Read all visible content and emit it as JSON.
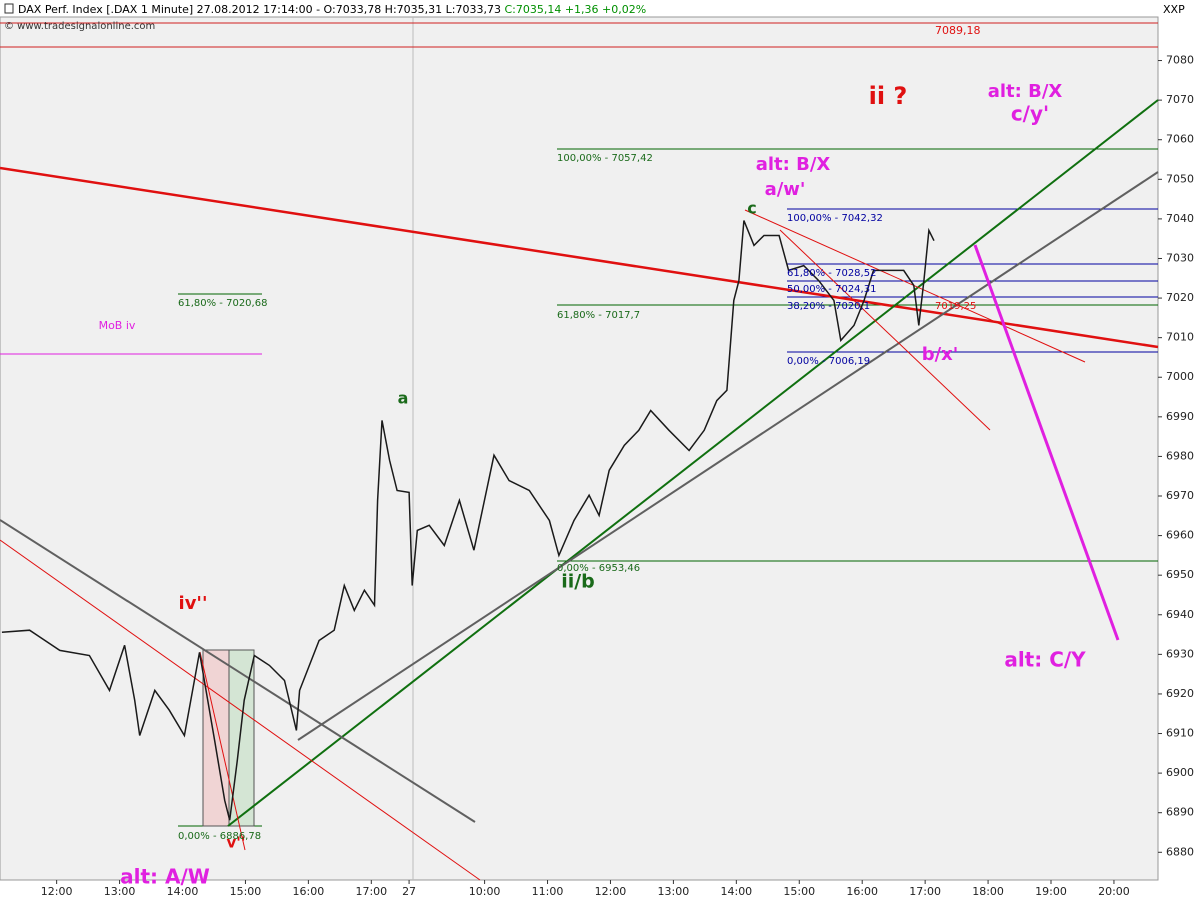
{
  "chart_data": {
    "type": "line",
    "title": "DAX Perf. Index [.DAX  1 Minute] 27.08.2012 17:14:00 - O:7033,78 H:7035,31 L:7033,73",
    "subtitle": "C:7035,14 +1,36 +0,02%",
    "source": "© www.tradesignalonline.com",
    "corner_label": "XXP",
    "color": "#1a1a1a",
    "x": [
      11.13,
      11.57,
      12.05,
      12.52,
      12.84,
      13.08,
      13.24,
      13.32,
      13.56,
      13.79,
      14.03,
      14.27,
      14.51,
      14.67,
      14.75,
      14.87,
      14.98,
      15.14,
      15.38,
      15.62,
      15.81,
      15.86,
      16.17,
      16.41,
      16.57,
      16.73,
      16.89,
      17.05,
      17.1,
      17.17,
      17.29,
      17.41,
      17.6,
      17.65,
      17.73,
      17.92,
      18.16,
      18.4,
      18.63,
      18.95,
      19.19,
      19.51,
      19.83,
      19.98,
      20.22,
      20.46,
      20.62,
      20.78,
      21.02,
      21.25,
      21.44,
      21.73,
      22.05,
      22.29,
      22.49,
      22.65,
      22.76,
      22.84,
      22.92,
      23.08,
      23.24,
      23.48,
      23.63,
      23.87,
      24.11,
      24.35,
      24.46,
      24.67,
      24.83,
      24.98,
      25.22,
      25.46,
      25.62,
      25.7,
      25.78,
      25.86,
      25.94
    ],
    "values": [
      6935.6,
      6936.1,
      6931.0,
      6929.7,
      6920.9,
      6932.3,
      6918.4,
      6909.5,
      6920.9,
      6915.9,
      6909.5,
      6930.5,
      6908.3,
      6893.1,
      6888.1,
      6903.2,
      6918.4,
      6929.7,
      6927.2,
      6923.4,
      6910.8,
      6920.9,
      6933.5,
      6936.1,
      6947.4,
      6941.1,
      6946.2,
      6942.4,
      6968.9,
      6989.1,
      6979.0,
      6971.4,
      6970.9,
      6947.4,
      6961.3,
      6962.6,
      6957.5,
      6968.9,
      6956.3,
      6980.3,
      6973.9,
      6971.4,
      6963.8,
      6955.0,
      6963.8,
      6970.2,
      6965.1,
      6976.5,
      6982.8,
      6986.6,
      6991.6,
      6986.6,
      6981.5,
      6986.6,
      6994.1,
      6996.7,
      7019.4,
      7024.4,
      7039.6,
      7033.3,
      7035.8,
      7035.8,
      7027.0,
      7028.2,
      7024.4,
      7019.4,
      7009.3,
      7013.1,
      7019.4,
      7027.0,
      7027.0,
      7027.0,
      7023.2,
      7013.1,
      7024.4,
      7037.1,
      7034.5
    ],
    "xlim": [
      11.1,
      29.5
    ],
    "ylim": [
      6873,
      7091
    ],
    "xticks": [
      {
        "value": 12,
        "label": "12:00"
      },
      {
        "value": 13,
        "label": "13:00"
      },
      {
        "value": 14,
        "label": "14:00"
      },
      {
        "value": 15,
        "label": "15:00"
      },
      {
        "value": 16,
        "label": "16:00"
      },
      {
        "value": 17,
        "label": "17:00"
      },
      {
        "value": 17.6,
        "label": "27"
      },
      {
        "value": 18.8,
        "label": "10:00"
      },
      {
        "value": 19.8,
        "label": "11:00"
      },
      {
        "value": 20.8,
        "label": "12:00"
      },
      {
        "value": 21.8,
        "label": "13:00"
      },
      {
        "value": 22.8,
        "label": "14:00"
      },
      {
        "value": 23.8,
        "label": "15:00"
      },
      {
        "value": 24.8,
        "label": "16:00"
      },
      {
        "value": 25.8,
        "label": "17:00"
      },
      {
        "value": 26.8,
        "label": "18:00"
      },
      {
        "value": 27.8,
        "label": "19:00"
      },
      {
        "value": 28.8,
        "label": "20:00"
      }
    ],
    "yticks": [
      6880,
      6890,
      6900,
      6910,
      6920,
      6930,
      6940,
      6950,
      6960,
      6970,
      6980,
      6990,
      7000,
      7010,
      7020,
      7030,
      7040,
      7050,
      7060,
      7070,
      7080
    ],
    "annotations": [
      "ii ?",
      "alt: B/X",
      "c/y'",
      "alt: B/X",
      "a/w'",
      "c",
      "a",
      "iv''",
      "v''",
      "ii/b",
      "b/x'",
      "alt: C/Y",
      "alt: A/W",
      "MoB iv",
      "7089,18",
      "100,00% - 7057,42",
      "61,80% - 7020,68",
      "61,80% - 7017,7",
      "100,00% - 7042,32",
      "61,80% - 7028,52",
      "50,00% - 7024,31",
      "38,20% - 7020,1",
      "0,00% - 7006,19",
      "7019,25",
      "0,00% - 6953,46",
      "0,00% - 6886,78"
    ]
  }
}
